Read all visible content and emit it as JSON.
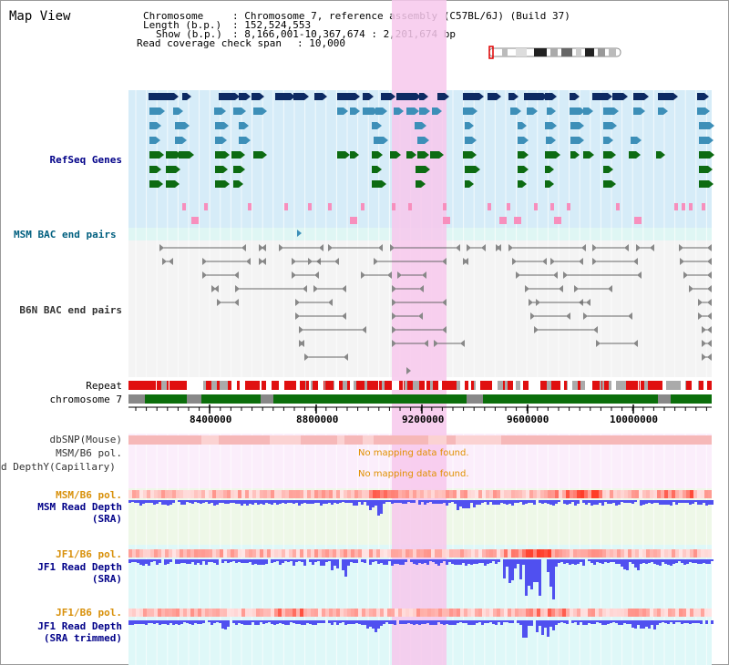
{
  "window": {
    "title": "Map View"
  },
  "info": {
    "chromosome_label": "Chromosome",
    "chromosome_value": ": Chromosome 7, reference assembly (C57BL/6J) (Build 37)",
    "length_label": "Length (b.p.)",
    "length_value": ": 152,524,553",
    "show_label": "Show (b.p.)",
    "show_value": ": 8,166,001-10,367,674 : 2,201,674 bp",
    "coverage_label": "Read coverage check span",
    "coverage_value": ": 10,000"
  },
  "tracks": {
    "refseq": "RefSeq Genes",
    "msm_bac": "MSM BAC end pairs",
    "b6n_bac": "B6N BAC end pairs",
    "repeat": "Repeat",
    "chromosome": "chromosome 7",
    "dbsnp": "dbSNP(Mouse)",
    "msm_b6_pol_1": "MSM/B6 pol.",
    "read_depth_cap": "d DepthY(Capillary)",
    "no_data_1": "No mapping data found.",
    "no_data_2": "No mapping data found.",
    "msm_b6_pol_2": "MSM/B6 pol.",
    "msm_read_depth": "MSM Read Depth",
    "msm_read_depth_sub": "(SRA)",
    "jf1_b6_pol_1": "JF1/B6 pol.",
    "jf1_read_depth": "JF1 Read Depth",
    "jf1_read_depth_sub": "(SRA)",
    "jf1_b6_pol_2": "JF1/B6 pol.",
    "jf1_read_depth_2": "JF1 Read Depth",
    "jf1_read_depth_2_sub": "(SRA trimmed)"
  },
  "axis": {
    "ticks": [
      "8400000",
      "8800000",
      "9200000",
      "9600000",
      "10000000"
    ]
  },
  "colors": {
    "refseq_dark": "#0d2a63",
    "refseq_mid": "#3d8fb8",
    "refseq_green": "#0d6b12",
    "refseq_pink": "#f78fbd",
    "highlight": "#f7c8ec",
    "repeat_red": "#e01010",
    "chrom_green": "#0b6e0b",
    "depth_blue": "#5050f0",
    "pol_pink": "#f4a8a8"
  }
}
